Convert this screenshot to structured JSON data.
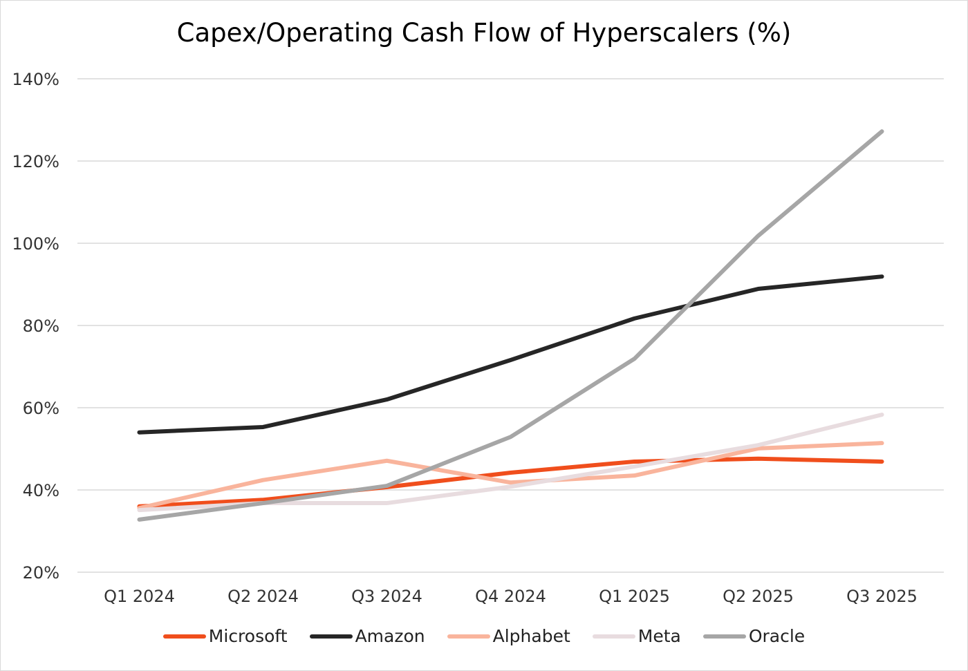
{
  "chart_data": {
    "type": "line",
    "title": "Capex/Operating Cash Flow of Hyperscalers (%)",
    "xlabel": "",
    "ylabel": "",
    "categories": [
      "Q1 2024",
      "Q2 2024",
      "Q3 2024",
      "Q4 2024",
      "Q1 2025",
      "Q2 2025",
      "Q3 2025"
    ],
    "ylim": [
      20,
      140
    ],
    "yticks": [
      20,
      40,
      60,
      80,
      100,
      120,
      140
    ],
    "ytick_labels": [
      "20%",
      "40%",
      "60%",
      "80%",
      "100%",
      "120%",
      "140%"
    ],
    "grid": true,
    "legend_position": "bottom",
    "series": [
      {
        "name": "Microsoft",
        "color": "#f04e1c",
        "values": [
          36,
          37.6,
          40.7,
          44.2,
          46.9,
          47.6,
          46.9
        ]
      },
      {
        "name": "Amazon",
        "color": "#262626",
        "values": [
          54,
          55.3,
          62,
          71.6,
          81.7,
          88.9,
          91.9
        ]
      },
      {
        "name": "Alphabet",
        "color": "#f9b49c",
        "values": [
          35.6,
          42.4,
          47.1,
          41.8,
          43.5,
          50.1,
          51.4
        ]
      },
      {
        "name": "Meta",
        "color": "#e8dcdf",
        "values": [
          35.1,
          36.8,
          36.8,
          40.8,
          45.7,
          50.9,
          58.3
        ]
      },
      {
        "name": "Oracle",
        "color": "#a6a6a6",
        "values": [
          32.8,
          36.8,
          41,
          52.9,
          71.9,
          101.8,
          127.2
        ]
      }
    ]
  }
}
